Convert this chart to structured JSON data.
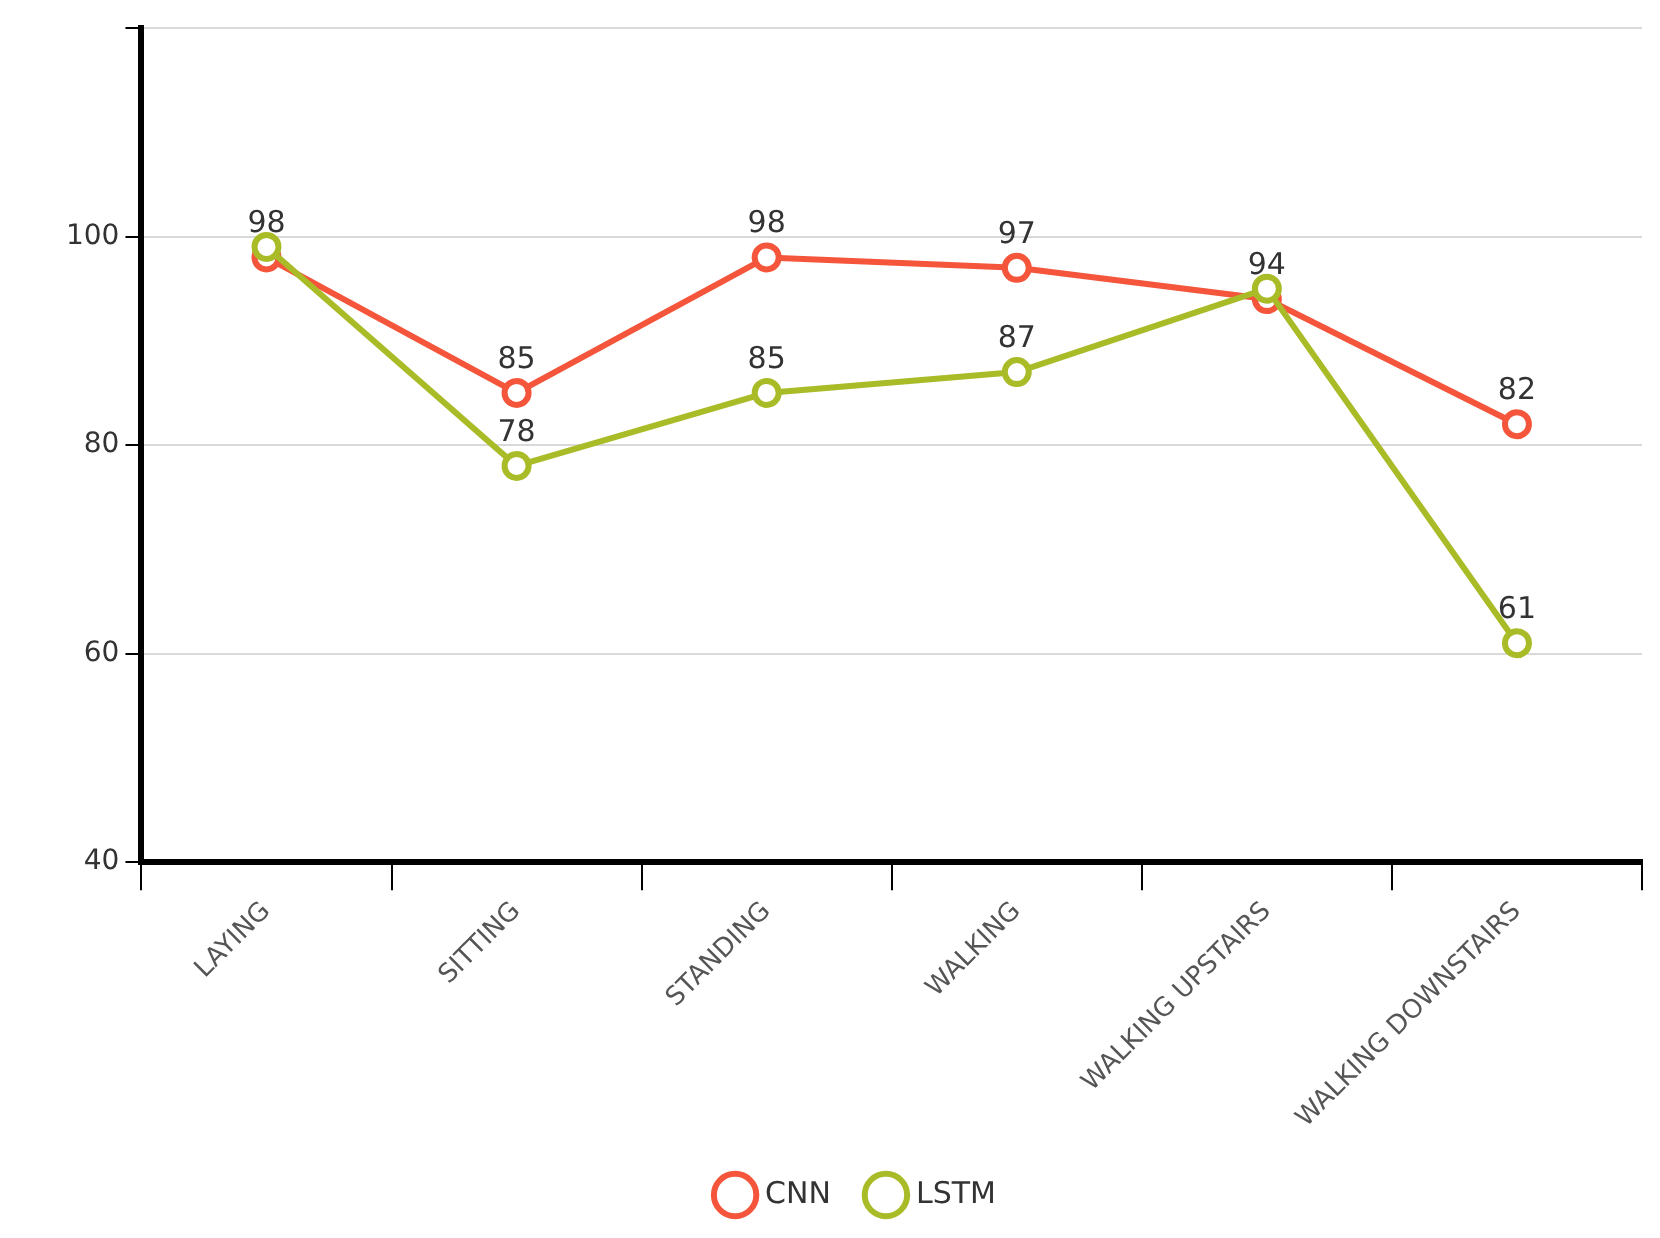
{
  "chart_data": {
    "type": "line",
    "categories": [
      "LAYING",
      "SITTING",
      "STANDING",
      "WALKING",
      "WALKING UPSTAIRS",
      "WALKING DOWNSTAIRS"
    ],
    "series": [
      {
        "name": "CNN",
        "color": "#f4553b",
        "values": [
          98,
          85,
          98,
          97,
          94,
          82
        ],
        "value_labels": [
          "98",
          "85",
          "98",
          "97",
          "94",
          "82"
        ]
      },
      {
        "name": "LSTM",
        "color": "#a9bb27",
        "values": [
          99,
          78,
          85,
          87,
          95,
          61
        ],
        "value_labels": [
          null,
          "78",
          "85",
          "87",
          null,
          "61"
        ]
      }
    ],
    "ylim": [
      40,
      120
    ],
    "yticks": [
      40,
      60,
      80,
      100,
      {
        "value": 120,
        "label": null
      }
    ],
    "grid": "y",
    "legend": "bottom",
    "marker": "circle",
    "line_style": "solid"
  }
}
